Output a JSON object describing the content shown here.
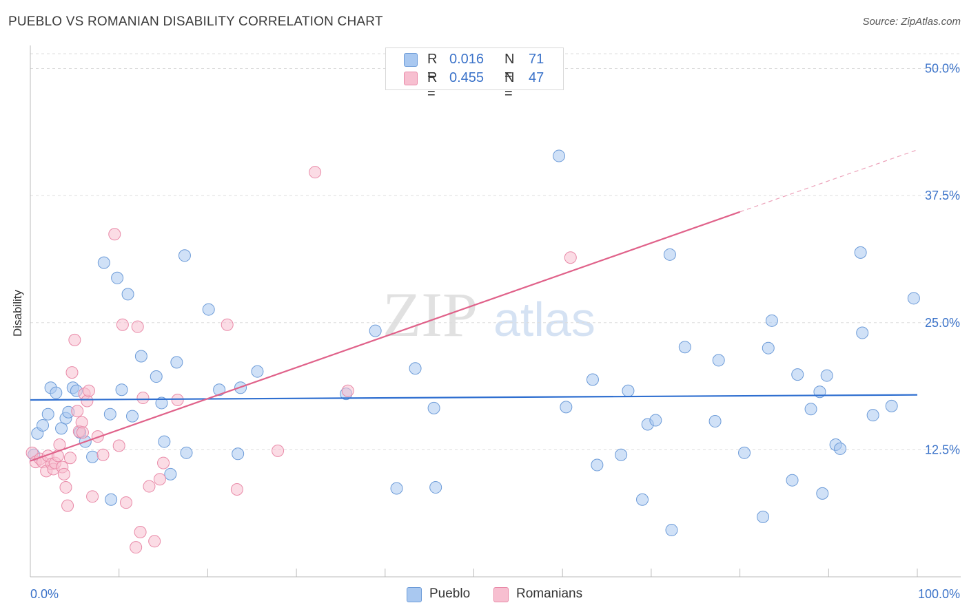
{
  "header": {
    "title": "PUEBLO VS ROMANIAN DISABILITY CORRELATION CHART",
    "source": "Source: ZipAtlas.com"
  },
  "watermark": {
    "zip": "ZIP",
    "atlas": "atlas"
  },
  "legend": {
    "rows": [
      {
        "r_label": "R =",
        "r_value": "0.016",
        "n_label": "N =",
        "n_value": "71",
        "color": "#a9c8f0",
        "stroke": "#6c9bd8"
      },
      {
        "r_label": "R =",
        "r_value": "0.455",
        "n_label": "N =",
        "n_value": "47",
        "color": "#f7bfd0",
        "stroke": "#e98aa8"
      }
    ]
  },
  "bottom_legend": [
    {
      "label": "Pueblo",
      "color": "#a9c8f0",
      "stroke": "#6c9bd8"
    },
    {
      "label": "Romanians",
      "color": "#f7bfd0",
      "stroke": "#e98aa8"
    }
  ],
  "chart_data": {
    "type": "scatter",
    "ylabel": "Disability",
    "xlim": [
      0,
      100
    ],
    "ylim": [
      0,
      52
    ],
    "x_tick_labels": [
      "0.0%",
      "100.0%"
    ],
    "y_ticks": [
      {
        "value": 12.5,
        "label": "12.5%"
      },
      {
        "value": 25.0,
        "label": "25.0%"
      },
      {
        "value": 37.5,
        "label": "37.5%"
      },
      {
        "value": 50.0,
        "label": "50.0%"
      }
    ],
    "series": [
      {
        "name": "Pueblo",
        "color": "#a9c8f0",
        "stroke": "#6c9bd8",
        "trend": {
          "x": [
            0,
            100
          ],
          "y": [
            17.4,
            17.9
          ],
          "color": "#2f6fd0"
        },
        "points": [
          [
            0.4,
            12.0
          ],
          [
            0.8,
            14.1
          ],
          [
            1.4,
            14.9
          ],
          [
            2.0,
            16.0
          ],
          [
            2.3,
            18.6
          ],
          [
            2.9,
            18.1
          ],
          [
            3.5,
            14.6
          ],
          [
            4.0,
            15.6
          ],
          [
            4.3,
            16.2
          ],
          [
            4.8,
            18.6
          ],
          [
            5.2,
            18.3
          ],
          [
            5.6,
            14.2
          ],
          [
            6.2,
            13.3
          ],
          [
            7.0,
            11.8
          ],
          [
            8.3,
            30.9
          ],
          [
            9.0,
            16.0
          ],
          [
            9.1,
            7.6
          ],
          [
            9.8,
            29.4
          ],
          [
            10.3,
            18.4
          ],
          [
            11.0,
            27.8
          ],
          [
            11.5,
            15.8
          ],
          [
            12.5,
            21.7
          ],
          [
            14.2,
            19.7
          ],
          [
            14.8,
            17.1
          ],
          [
            15.1,
            13.3
          ],
          [
            15.8,
            10.1
          ],
          [
            16.5,
            21.1
          ],
          [
            17.4,
            31.6
          ],
          [
            17.6,
            12.2
          ],
          [
            20.1,
            26.3
          ],
          [
            21.3,
            18.4
          ],
          [
            23.4,
            12.1
          ],
          [
            23.7,
            18.6
          ],
          [
            25.6,
            20.2
          ],
          [
            35.6,
            18.0
          ],
          [
            38.9,
            24.2
          ],
          [
            41.3,
            8.7
          ],
          [
            43.4,
            20.5
          ],
          [
            45.5,
            16.6
          ],
          [
            45.7,
            8.8
          ],
          [
            59.6,
            41.4
          ],
          [
            60.4,
            16.7
          ],
          [
            63.4,
            19.4
          ],
          [
            63.9,
            11.0
          ],
          [
            66.6,
            12.0
          ],
          [
            67.4,
            18.3
          ],
          [
            69.0,
            7.6
          ],
          [
            69.6,
            15.0
          ],
          [
            70.5,
            15.4
          ],
          [
            72.1,
            31.7
          ],
          [
            72.3,
            4.6
          ],
          [
            73.8,
            22.6
          ],
          [
            77.2,
            15.3
          ],
          [
            77.6,
            21.3
          ],
          [
            80.5,
            12.2
          ],
          [
            82.6,
            5.9
          ],
          [
            83.2,
            22.5
          ],
          [
            83.6,
            25.2
          ],
          [
            85.9,
            9.5
          ],
          [
            86.5,
            19.9
          ],
          [
            88.0,
            16.5
          ],
          [
            89.0,
            18.2
          ],
          [
            89.3,
            8.2
          ],
          [
            89.8,
            19.8
          ],
          [
            90.8,
            13.0
          ],
          [
            91.3,
            12.6
          ],
          [
            93.6,
            31.9
          ],
          [
            93.8,
            24.0
          ],
          [
            95.0,
            15.9
          ],
          [
            97.1,
            16.8
          ],
          [
            99.6,
            27.4
          ]
        ]
      },
      {
        "name": "Romanians",
        "color": "#f7bfd0",
        "stroke": "#e98aa8",
        "trend": {
          "x": [
            0,
            80
          ],
          "y": [
            11.4,
            35.9
          ],
          "ext_x": [
            80,
            100
          ],
          "ext_y": [
            35.9,
            42.0
          ],
          "color": "#e0628a"
        },
        "points": [
          [
            0.2,
            12.2
          ],
          [
            0.6,
            11.3
          ],
          [
            1.1,
            11.6
          ],
          [
            1.4,
            11.3
          ],
          [
            1.8,
            10.4
          ],
          [
            2.0,
            11.9
          ],
          [
            2.4,
            11.1
          ],
          [
            2.6,
            10.6
          ],
          [
            2.8,
            11.2
          ],
          [
            3.1,
            11.9
          ],
          [
            3.3,
            13.0
          ],
          [
            3.6,
            10.8
          ],
          [
            3.8,
            10.1
          ],
          [
            4.0,
            8.8
          ],
          [
            4.2,
            7.0
          ],
          [
            4.5,
            11.7
          ],
          [
            4.7,
            20.1
          ],
          [
            5.0,
            23.3
          ],
          [
            5.3,
            16.3
          ],
          [
            5.5,
            14.3
          ],
          [
            5.8,
            15.2
          ],
          [
            6.1,
            18.0
          ],
          [
            6.4,
            17.3
          ],
          [
            6.6,
            18.3
          ],
          [
            7.0,
            7.9
          ],
          [
            7.6,
            13.8
          ],
          [
            8.2,
            12.0
          ],
          [
            9.5,
            33.7
          ],
          [
            10.0,
            12.9
          ],
          [
            10.4,
            24.8
          ],
          [
            10.8,
            7.3
          ],
          [
            11.9,
            2.9
          ],
          [
            12.1,
            24.6
          ],
          [
            12.4,
            4.4
          ],
          [
            12.7,
            17.6
          ],
          [
            13.4,
            8.9
          ],
          [
            14.0,
            3.5
          ],
          [
            14.6,
            9.6
          ],
          [
            15.0,
            11.2
          ],
          [
            16.6,
            17.4
          ],
          [
            22.2,
            24.8
          ],
          [
            23.3,
            8.6
          ],
          [
            27.9,
            12.4
          ],
          [
            32.1,
            39.8
          ],
          [
            35.8,
            18.3
          ],
          [
            60.9,
            31.4
          ],
          [
            5.9,
            14.2
          ]
        ]
      }
    ]
  }
}
